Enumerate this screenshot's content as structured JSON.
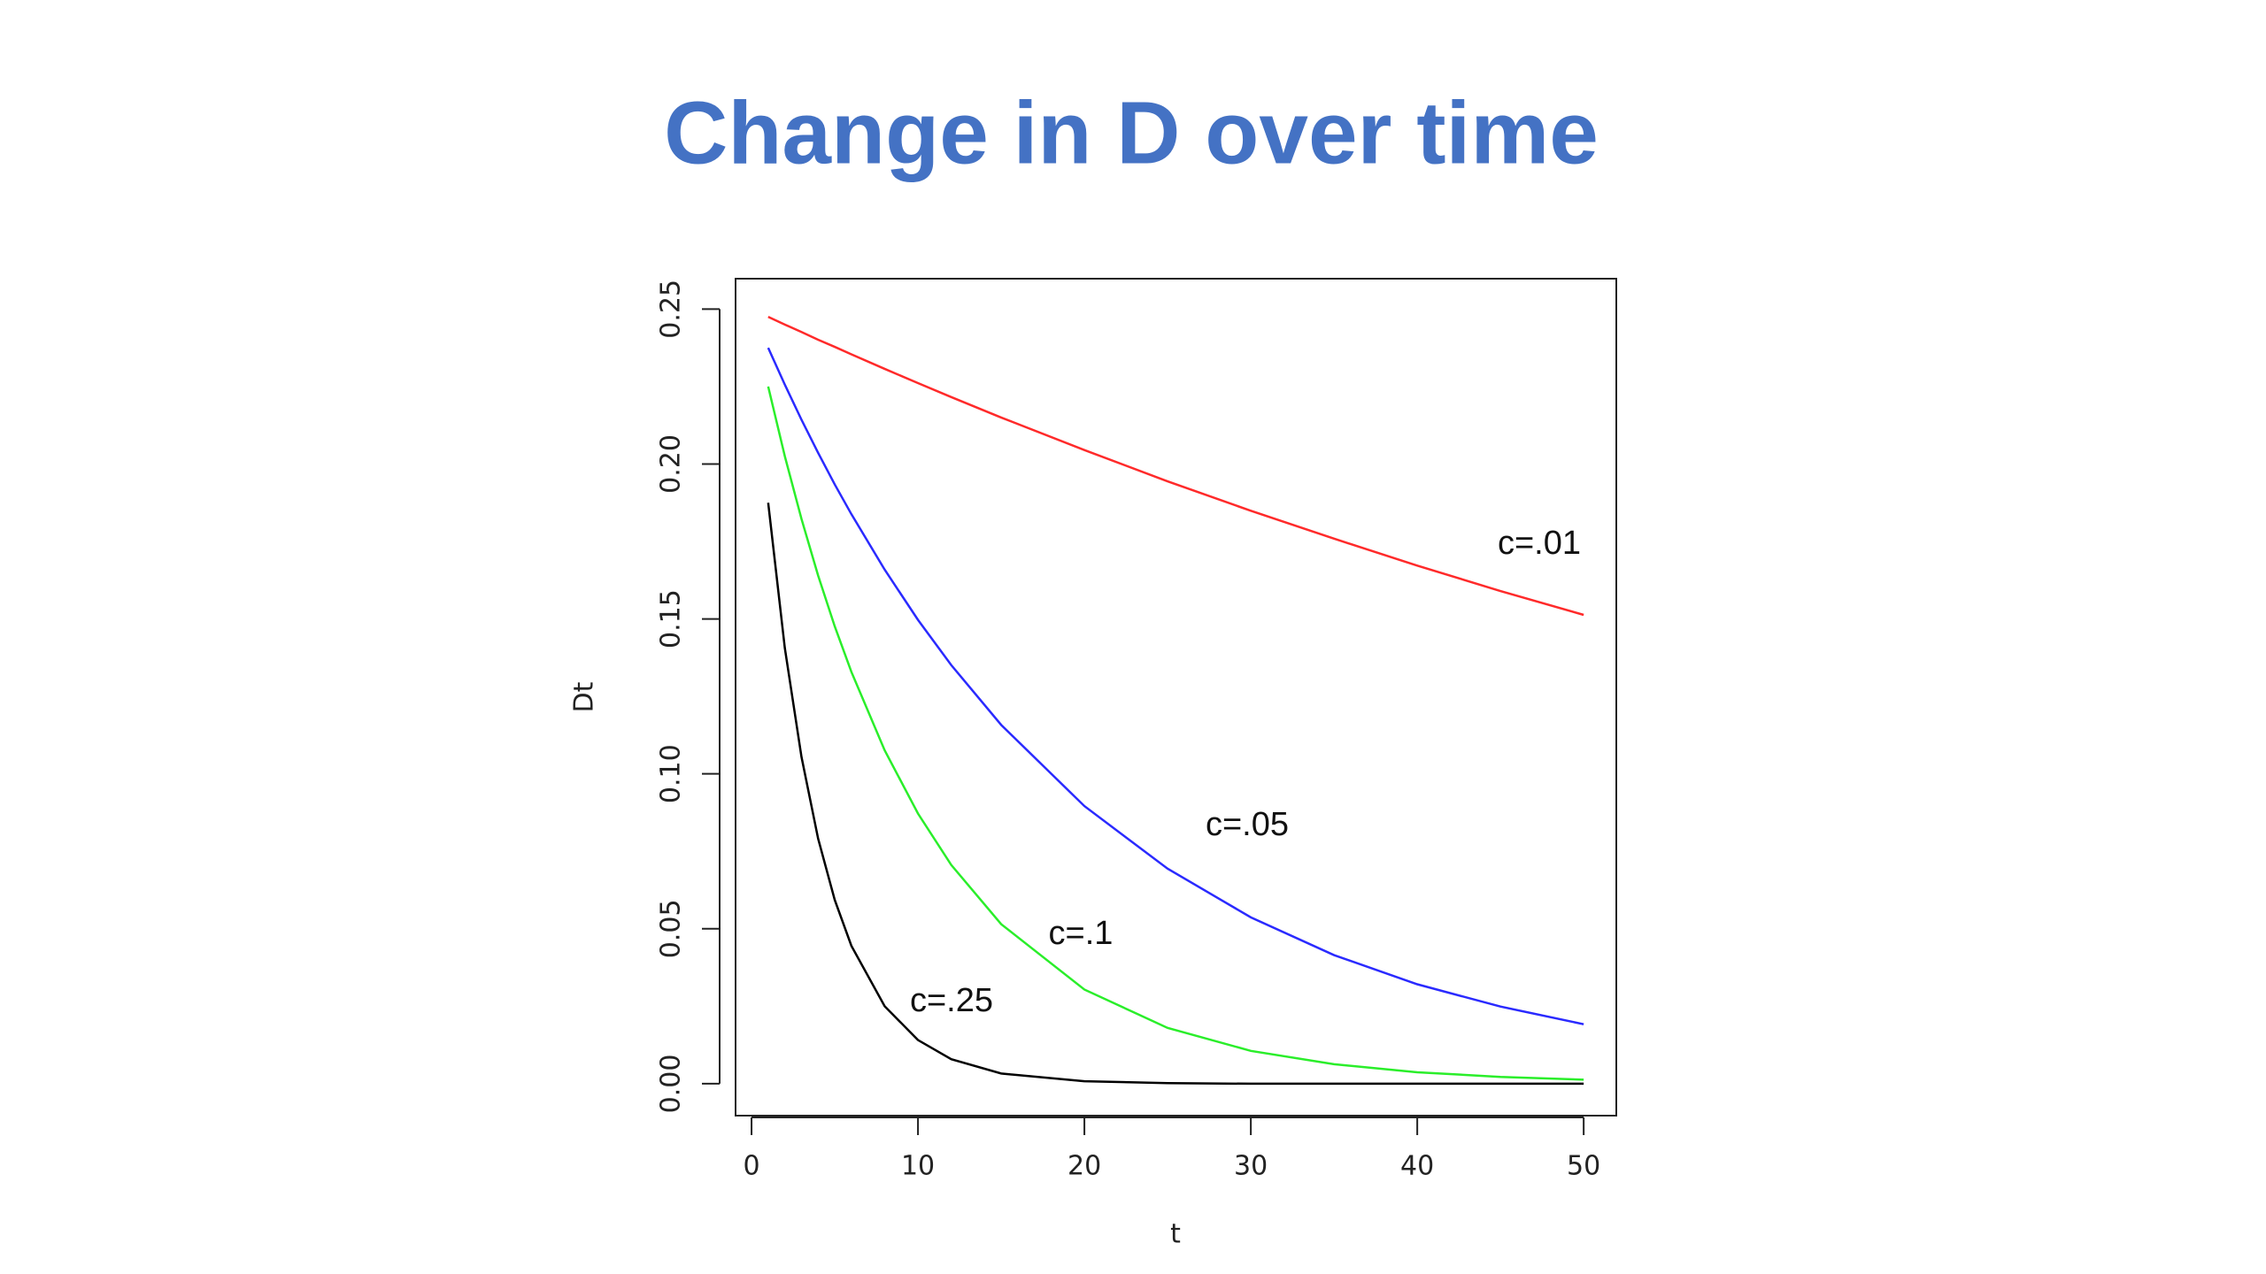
{
  "chart_data": {
    "type": "line",
    "title": "Change in D over time",
    "x_label": "t",
    "y_label": "Dt",
    "x": [
      1,
      2,
      3,
      4,
      5,
      6,
      8,
      10,
      12,
      15,
      20,
      25,
      30,
      35,
      40,
      45,
      50
    ],
    "series": [
      {
        "name": "c=.01",
        "color": "#ff2a2a",
        "values": [
          0.2475,
          0.245,
          0.2426,
          0.2401,
          0.2378,
          0.2354,
          0.2307,
          0.2261,
          0.2216,
          0.215,
          0.2045,
          0.1944,
          0.1849,
          0.1759,
          0.1672,
          0.159,
          0.1513
        ]
      },
      {
        "name": "c=.05",
        "color": "#2a2aff",
        "values": [
          0.2375,
          0.2256,
          0.2143,
          0.2036,
          0.1934,
          0.1838,
          0.1659,
          0.1497,
          0.1351,
          0.1158,
          0.0896,
          0.0694,
          0.0537,
          0.0415,
          0.0321,
          0.0249,
          0.0192
        ]
      },
      {
        "name": "c=.1",
        "color": "#2aee2a",
        "values": [
          0.225,
          0.2025,
          0.1823,
          0.164,
          0.1476,
          0.1329,
          0.1076,
          0.0872,
          0.0706,
          0.0515,
          0.0304,
          0.018,
          0.0106,
          0.0063,
          0.0037,
          0.0022,
          0.0013
        ]
      },
      {
        "name": "c=.25",
        "color": "#000000",
        "values": [
          0.1875,
          0.1406,
          0.1055,
          0.0791,
          0.0593,
          0.0445,
          0.025,
          0.0141,
          0.0079,
          0.0033,
          0.0008,
          0.0002,
          0,
          0,
          0,
          0,
          0
        ]
      }
    ],
    "xlim": [
      -0.96,
      51.96
    ],
    "ylim": [
      -0.0103,
      0.2598
    ],
    "xticks": [
      0,
      10,
      20,
      30,
      40,
      50
    ],
    "yticks": [
      {
        "value": 0,
        "label": "0.00"
      },
      {
        "value": 0.05,
        "label": "0.05"
      },
      {
        "value": 0.1,
        "label": "0.10"
      },
      {
        "value": 0.15,
        "label": "0.15"
      },
      {
        "value": 0.2,
        "label": "0.20"
      },
      {
        "value": 0.25,
        "label": "0.25"
      }
    ]
  }
}
